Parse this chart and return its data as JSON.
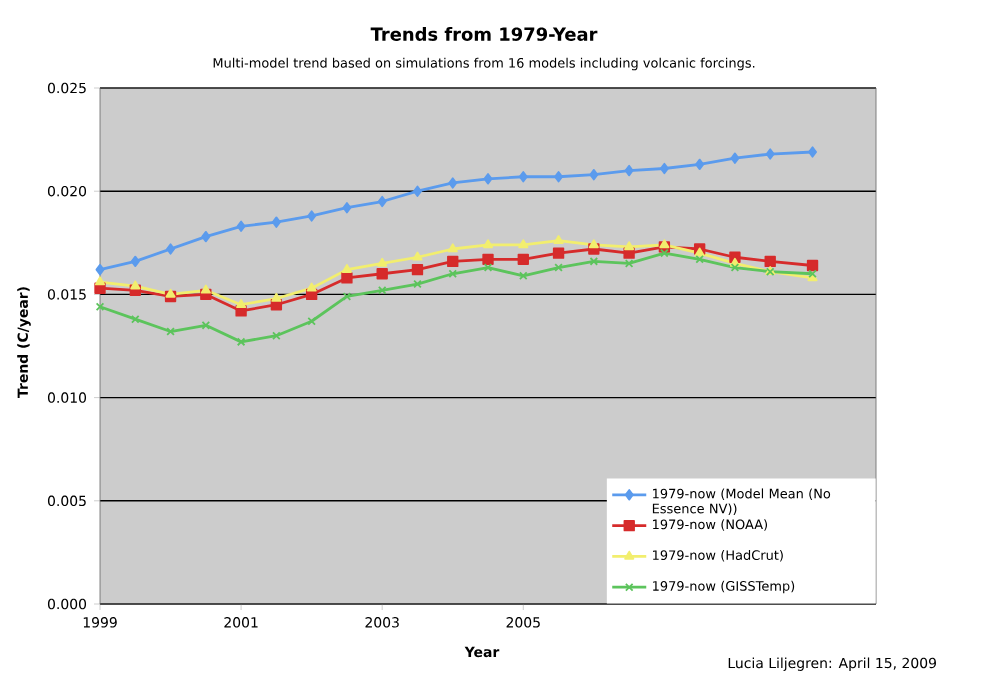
{
  "chart_data": {
    "type": "line",
    "title": "Trends from 1979-Year",
    "subtitle": "Multi-model trend based on simulations from 16 models including volcanic forcings.",
    "xlabel": "Year",
    "ylabel": "Trend  (C/year)",
    "annotations": [
      "Lucia Liljegren: April 15, 2009"
    ],
    "xlim": [
      1999,
      2010
    ],
    "xticks": [
      1999,
      2001,
      2003,
      2005
    ],
    "ylim": [
      0,
      0.025
    ],
    "yticks": [
      {
        "value": 0,
        "label": "0.000"
      },
      {
        "value": 0.005,
        "label": "0.005"
      },
      {
        "value": 0.01,
        "label": "0.010"
      },
      {
        "value": 0.015,
        "label": "0.015"
      },
      {
        "value": 0.02,
        "label": "0.020"
      },
      {
        "value": 0.025,
        "label": "0.025"
      }
    ],
    "grid": "y",
    "legend": "bottom right",
    "line_style": "solid",
    "x": [
      1999,
      1999.5,
      2000,
      2000.5,
      2001,
      2001.5,
      2002,
      2002.5,
      2003,
      2003.5,
      2004,
      2004.5,
      2005,
      2005.5,
      2006,
      2006.5,
      2007,
      2007.5,
      2008,
      2008.5,
      2009.1
    ],
    "series": [
      {
        "name": "1979-now (Model Mean (No Essence NV))",
        "color": "#5b9bed",
        "marker": "diamond",
        "values": [
          0.0162,
          0.0166,
          0.0172,
          0.0178,
          0.0183,
          0.0185,
          0.0188,
          0.0192,
          0.0195,
          0.02,
          0.0204,
          0.0206,
          0.0207,
          0.0207,
          0.0208,
          0.021,
          0.0211,
          0.0213,
          0.0216,
          0.0218,
          0.0219
        ]
      },
      {
        "name": "1979-now (NOAA)",
        "color": "#d62b2b",
        "marker": "square",
        "values": [
          0.0153,
          0.0152,
          0.0149,
          0.015,
          0.0142,
          0.0145,
          0.015,
          0.0158,
          0.016,
          0.0162,
          0.0166,
          0.0167,
          0.0167,
          0.017,
          0.0172,
          0.017,
          0.0173,
          0.0172,
          0.0168,
          0.0166,
          0.0164
        ]
      },
      {
        "name": "1979-now (HadCrut)",
        "color": "#f2ee6e",
        "marker": "triangle",
        "values": [
          0.0156,
          0.0154,
          0.015,
          0.0152,
          0.0145,
          0.0148,
          0.0153,
          0.0162,
          0.0165,
          0.0168,
          0.0172,
          0.0174,
          0.0174,
          0.0176,
          0.0174,
          0.0173,
          0.0174,
          0.017,
          0.0165,
          0.0161,
          0.0158
        ]
      },
      {
        "name": "1979-now (GISSTemp)",
        "color": "#5cc45c",
        "marker": "cross",
        "values": [
          0.0144,
          0.0138,
          0.0132,
          0.0135,
          0.0127,
          0.013,
          0.0137,
          0.0149,
          0.0152,
          0.0155,
          0.016,
          0.0163,
          0.0159,
          0.0163,
          0.0166,
          0.0165,
          0.017,
          0.0167,
          0.0163,
          0.0161,
          0.016
        ]
      }
    ]
  }
}
